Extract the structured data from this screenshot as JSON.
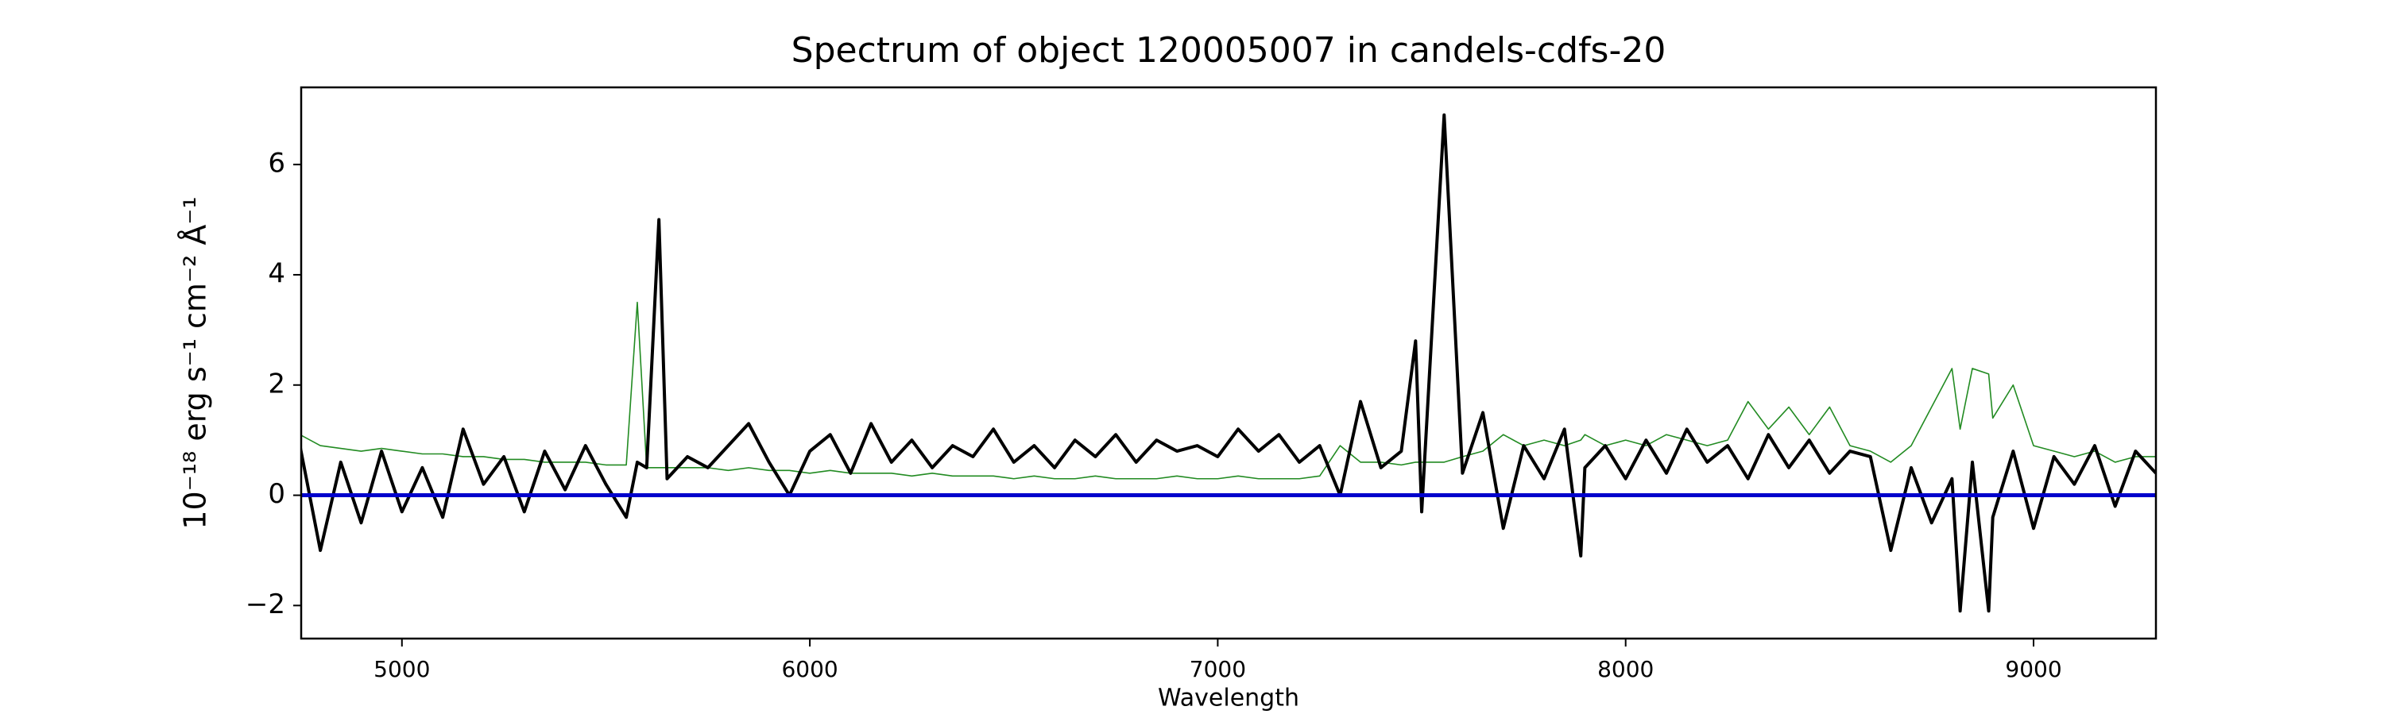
{
  "chart_data": {
    "type": "line",
    "title": "Spectrum of object 120005007 in candels-cdfs-20",
    "x_label": "Wavelength",
    "y_label": "10⁻¹⁸ erg s⁻¹ cm⁻² Å⁻¹",
    "xlim": [
      4753,
      9300
    ],
    "ylim": [
      -2.6,
      7.4
    ],
    "xticks": [
      5000,
      6000,
      7000,
      8000,
      9000
    ],
    "yticks": [
      {
        "value": -2,
        "label": "−2"
      },
      0,
      2,
      4,
      6
    ],
    "baseline": {
      "value": 0,
      "color": "#0000cc"
    },
    "x": [
      4750,
      4800,
      4850,
      4900,
      4950,
      5000,
      5050,
      5100,
      5150,
      5200,
      5250,
      5300,
      5350,
      5400,
      5450,
      5500,
      5550,
      5577,
      5600,
      5630,
      5650,
      5700,
      5750,
      5800,
      5850,
      5900,
      5950,
      6000,
      6050,
      6100,
      6150,
      6200,
      6250,
      6300,
      6350,
      6400,
      6450,
      6500,
      6550,
      6600,
      6650,
      6700,
      6750,
      6800,
      6850,
      6900,
      6950,
      7000,
      7050,
      7100,
      7150,
      7200,
      7250,
      7300,
      7350,
      7400,
      7450,
      7485,
      7500,
      7555,
      7600,
      7650,
      7700,
      7750,
      7800,
      7850,
      7890,
      7900,
      7950,
      8000,
      8050,
      8100,
      8150,
      8200,
      8250,
      8300,
      8350,
      8400,
      8450,
      8500,
      8550,
      8600,
      8650,
      8700,
      8750,
      8800,
      8820,
      8850,
      8890,
      8900,
      8950,
      9000,
      9050,
      9100,
      9150,
      9200,
      9250,
      9300
    ],
    "series": [
      {
        "color": "#228b22",
        "width": 1.6,
        "values": [
          1.1,
          0.9,
          0.85,
          0.8,
          0.85,
          0.8,
          0.75,
          0.75,
          0.7,
          0.7,
          0.65,
          0.65,
          0.6,
          0.6,
          0.6,
          0.55,
          0.55,
          3.5,
          0.5,
          0.5,
          0.5,
          0.5,
          0.5,
          0.45,
          0.5,
          0.45,
          0.45,
          0.4,
          0.45,
          0.4,
          0.4,
          0.4,
          0.35,
          0.4,
          0.35,
          0.35,
          0.35,
          0.3,
          0.35,
          0.3,
          0.3,
          0.35,
          0.3,
          0.3,
          0.3,
          0.35,
          0.3,
          0.3,
          0.35,
          0.3,
          0.3,
          0.3,
          0.35,
          0.9,
          0.6,
          0.6,
          0.55,
          0.6,
          0.6,
          0.6,
          0.7,
          0.8,
          1.1,
          0.9,
          1.0,
          0.9,
          1.0,
          1.1,
          0.9,
          1.0,
          0.9,
          1.1,
          1.0,
          0.9,
          1.0,
          1.7,
          1.2,
          1.6,
          1.1,
          1.6,
          0.9,
          0.8,
          0.6,
          0.9,
          1.6,
          2.3,
          1.2,
          2.3,
          2.2,
          1.4,
          2.0,
          0.9,
          0.8,
          0.7,
          0.8,
          0.6,
          0.7,
          0.7
        ]
      },
      {
        "color": "#000000",
        "width": 4,
        "values": [
          0.9,
          -1.0,
          0.6,
          -0.5,
          0.8,
          -0.3,
          0.5,
          -0.4,
          1.2,
          0.2,
          0.7,
          -0.3,
          0.8,
          0.1,
          0.9,
          0.2,
          -0.4,
          0.6,
          0.5,
          5.0,
          0.3,
          0.7,
          0.5,
          0.9,
          1.3,
          0.6,
          0.0,
          0.8,
          1.1,
          0.4,
          1.3,
          0.6,
          1.0,
          0.5,
          0.9,
          0.7,
          1.2,
          0.6,
          0.9,
          0.5,
          1.0,
          0.7,
          1.1,
          0.6,
          1.0,
          0.8,
          0.9,
          0.7,
          1.2,
          0.8,
          1.1,
          0.6,
          0.9,
          0.0,
          1.7,
          0.5,
          0.8,
          2.8,
          -0.3,
          6.9,
          0.4,
          1.5,
          -0.6,
          0.9,
          0.3,
          1.2,
          -1.1,
          0.5,
          0.9,
          0.3,
          1.0,
          0.4,
          1.2,
          0.6,
          0.9,
          0.3,
          1.1,
          0.5,
          1.0,
          0.4,
          0.8,
          0.7,
          -1.0,
          0.5,
          -0.5,
          0.3,
          -2.1,
          0.6,
          -2.1,
          -0.4,
          0.8,
          -0.6,
          0.7,
          0.2,
          0.9,
          -0.2,
          0.8,
          0.4
        ]
      }
    ]
  }
}
